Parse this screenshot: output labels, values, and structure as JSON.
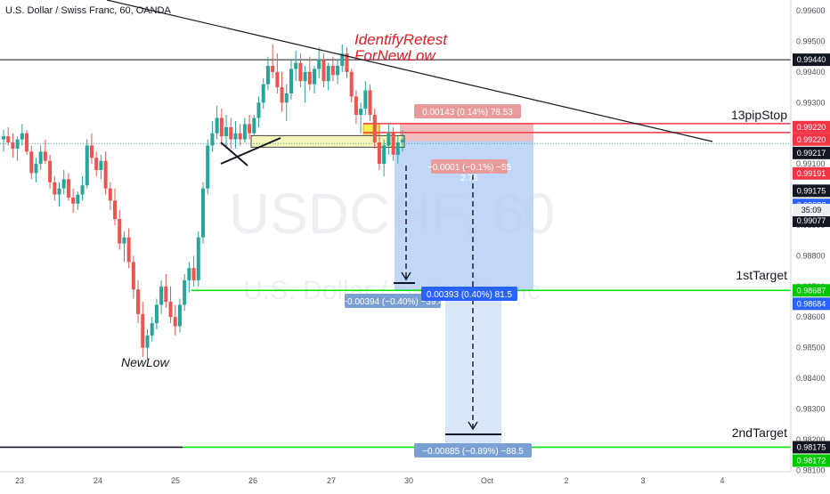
{
  "header": {
    "title": "U.S. Dollar / Swiss Franc, 60, OANDA"
  },
  "watermark": {
    "symbol": "USDCHF, 60",
    "name": "U.S. Dollar / Swiss Franc"
  },
  "colors": {
    "up": "#26a69a",
    "down": "#ef5350",
    "target_line": "#00e600",
    "stop_line": "#f23645",
    "reward_fill": "#b2cdf5",
    "risk_fill": "#efb0b0",
    "retest_zone": "#f5f5b8",
    "trendline": "#131722"
  },
  "annotations": {
    "identify": "IdentifyRetest",
    "fornewlow": "ForNewLow",
    "newlow": "NewLow",
    "stop": "13pipStop",
    "target1": "1stTarget",
    "target2": "2ndTarget"
  },
  "position_labels": {
    "risk": "0.00143 (0.14%) 78.53",
    "entry_partial": "−0.0001 (−0.1%) −55",
    "rr": "2.75",
    "reward1": "0.00393 (0.40%) 81.5",
    "short1": "−0.00394 (−0.40%) −39.4",
    "reward2": "−0.00885 (−0.89%) −88.5"
  },
  "chart_data": {
    "type": "candlestick",
    "title": "U.S. Dollar / Swiss Franc, 60, OANDA",
    "xlabel": "",
    "ylabel": "",
    "x_ticks": [
      "23",
      "24",
      "25",
      "26",
      "27",
      "30",
      "Oct",
      "2",
      "3",
      "4"
    ],
    "y_ticks": [
      0.996,
      0.995,
      0.994,
      0.993,
      0.992,
      0.991,
      0.99,
      0.989,
      0.988,
      0.987,
      0.986,
      0.985,
      0.984,
      0.983,
      0.982,
      0.981
    ],
    "ylim": [
      0.98095,
      0.99635
    ],
    "grid": false,
    "price_tags": [
      {
        "value": 0.9944,
        "kind": "line"
      },
      {
        "value": 0.9922,
        "kind": "stop"
      },
      {
        "value": 0.9922,
        "kind": "stop2"
      },
      {
        "value": 0.99217,
        "kind": "current"
      },
      {
        "value": 0.99191,
        "kind": "stop"
      },
      {
        "value": 0.99175,
        "kind": "current"
      },
      {
        "value": 0.99088,
        "kind": "blue"
      },
      {
        "value": 0.99077,
        "kind": "current"
      },
      {
        "value": 0.98687,
        "kind": "target"
      },
      {
        "value": 0.98684,
        "kind": "blue"
      },
      {
        "value": 0.98175,
        "kind": "current"
      },
      {
        "value": 0.98172,
        "kind": "target"
      }
    ],
    "countdown": "35:09",
    "levels": {
      "resistance": 0.9944,
      "stop": 0.9922,
      "entry": 0.99175,
      "target1": 0.98687,
      "target2": 0.98175
    },
    "series": [
      {
        "name": "",
        "values": [
          [
            0.9918,
            0.9921,
            0.9914,
            0.9919
          ],
          [
            0.9919,
            0.9922,
            0.9916,
            0.9917
          ],
          [
            0.9917,
            0.992,
            0.9912,
            0.9915
          ],
          [
            0.9915,
            0.9919,
            0.9911,
            0.9918
          ],
          [
            0.9918,
            0.9923,
            0.9916,
            0.992
          ],
          [
            0.992,
            0.9921,
            0.9913,
            0.9914
          ],
          [
            0.9914,
            0.9916,
            0.9905,
            0.9907
          ],
          [
            0.9907,
            0.9912,
            0.9904,
            0.991
          ],
          [
            0.991,
            0.9916,
            0.9908,
            0.9914
          ],
          [
            0.9914,
            0.9918,
            0.991,
            0.9911
          ],
          [
            0.9911,
            0.9913,
            0.9902,
            0.9904
          ],
          [
            0.9904,
            0.9906,
            0.9898,
            0.99
          ],
          [
            0.99,
            0.9904,
            0.9896,
            0.9902
          ],
          [
            0.9902,
            0.9908,
            0.99,
            0.9905
          ],
          [
            0.9905,
            0.9907,
            0.9898,
            0.9899
          ],
          [
            0.9899,
            0.9902,
            0.9894,
            0.9897
          ],
          [
            0.9897,
            0.9901,
            0.9895,
            0.99
          ],
          [
            0.99,
            0.9906,
            0.9898,
            0.9903
          ],
          [
            0.9903,
            0.9918,
            0.9902,
            0.9916
          ],
          [
            0.9916,
            0.992,
            0.991,
            0.9912
          ],
          [
            0.9912,
            0.9914,
            0.9906,
            0.9908
          ],
          [
            0.9908,
            0.9913,
            0.9905,
            0.9911
          ],
          [
            0.9911,
            0.9914,
            0.99,
            0.9902
          ],
          [
            0.9902,
            0.9904,
            0.9895,
            0.9898
          ],
          [
            0.9898,
            0.9902,
            0.989,
            0.9892
          ],
          [
            0.9892,
            0.9895,
            0.9882,
            0.9884
          ],
          [
            0.9884,
            0.9888,
            0.9878,
            0.9886
          ],
          [
            0.9886,
            0.9889,
            0.9876,
            0.9878
          ],
          [
            0.9878,
            0.988,
            0.9866,
            0.9869
          ],
          [
            0.9869,
            0.9872,
            0.9858,
            0.9861
          ],
          [
            0.9861,
            0.9865,
            0.9847,
            0.985
          ],
          [
            0.985,
            0.9856,
            0.9846,
            0.9854
          ],
          [
            0.9854,
            0.986,
            0.9852,
            0.9858
          ],
          [
            0.9858,
            0.9866,
            0.9856,
            0.9864
          ],
          [
            0.9864,
            0.9872,
            0.9861,
            0.987
          ],
          [
            0.987,
            0.9874,
            0.9863,
            0.9865
          ],
          [
            0.9865,
            0.987,
            0.9858,
            0.986
          ],
          [
            0.986,
            0.9864,
            0.9854,
            0.9857
          ],
          [
            0.9857,
            0.9866,
            0.9855,
            0.9864
          ],
          [
            0.9864,
            0.9874,
            0.9862,
            0.9872
          ],
          [
            0.9872,
            0.9878,
            0.9868,
            0.9876
          ],
          [
            0.9876,
            0.988,
            0.987,
            0.9872
          ],
          [
            0.9872,
            0.9888,
            0.987,
            0.9886
          ],
          [
            0.9886,
            0.9904,
            0.9884,
            0.9902
          ],
          [
            0.9902,
            0.9918,
            0.99,
            0.9916
          ],
          [
            0.9916,
            0.9924,
            0.9914,
            0.992
          ],
          [
            0.992,
            0.9929,
            0.9918,
            0.9925
          ],
          [
            0.9925,
            0.9928,
            0.9916,
            0.9919
          ],
          [
            0.9919,
            0.9926,
            0.9915,
            0.9922
          ],
          [
            0.9922,
            0.9925,
            0.9915,
            0.9918
          ],
          [
            0.9918,
            0.9924,
            0.9915,
            0.992
          ],
          [
            0.992,
            0.9923,
            0.9916,
            0.9918
          ],
          [
            0.9918,
            0.9925,
            0.9917,
            0.9923
          ],
          [
            0.9923,
            0.9926,
            0.9918,
            0.992
          ],
          [
            0.992,
            0.9926,
            0.9919,
            0.9925
          ],
          [
            0.9925,
            0.9932,
            0.9922,
            0.993
          ],
          [
            0.993,
            0.9938,
            0.9928,
            0.9936
          ],
          [
            0.9936,
            0.9945,
            0.9934,
            0.9942
          ],
          [
            0.9942,
            0.9949,
            0.9938,
            0.994
          ],
          [
            0.994,
            0.9946,
            0.9933,
            0.9935
          ],
          [
            0.9935,
            0.994,
            0.9927,
            0.993
          ],
          [
            0.993,
            0.9936,
            0.9924,
            0.9933
          ],
          [
            0.9933,
            0.9944,
            0.9931,
            0.9941
          ],
          [
            0.9941,
            0.9947,
            0.9937,
            0.9943
          ],
          [
            0.9943,
            0.9946,
            0.9935,
            0.9937
          ],
          [
            0.9937,
            0.9942,
            0.993,
            0.994
          ],
          [
            0.994,
            0.9945,
            0.9934,
            0.9936
          ],
          [
            0.9936,
            0.9942,
            0.9933,
            0.9941
          ],
          [
            0.9941,
            0.9948,
            0.9938,
            0.9944
          ],
          [
            0.9944,
            0.9946,
            0.9935,
            0.9937
          ],
          [
            0.9937,
            0.9943,
            0.9934,
            0.9942
          ],
          [
            0.9942,
            0.9945,
            0.9937,
            0.9939
          ],
          [
            0.9939,
            0.9944,
            0.9936,
            0.9942
          ],
          [
            0.9942,
            0.9949,
            0.994,
            0.9946
          ],
          [
            0.9946,
            0.9948,
            0.9938,
            0.994
          ],
          [
            0.994,
            0.9941,
            0.993,
            0.9932
          ],
          [
            0.9932,
            0.9934,
            0.9923,
            0.9926
          ],
          [
            0.9926,
            0.993,
            0.992,
            0.9928
          ],
          [
            0.9928,
            0.9937,
            0.9926,
            0.9934
          ],
          [
            0.9934,
            0.9936,
            0.9924,
            0.9926
          ],
          [
            0.9926,
            0.9928,
            0.9915,
            0.9917
          ],
          [
            0.9917,
            0.9923,
            0.9908,
            0.991
          ],
          [
            0.991,
            0.9918,
            0.9906,
            0.9916
          ],
          [
            0.9916,
            0.9923,
            0.9913,
            0.992
          ],
          [
            0.992,
            0.9922,
            0.9911,
            0.9913
          ],
          [
            0.9913,
            0.9919,
            0.991,
            0.9917
          ],
          [
            0.9917,
            0.9921,
            0.9914,
            0.9918
          ]
        ]
      }
    ]
  }
}
